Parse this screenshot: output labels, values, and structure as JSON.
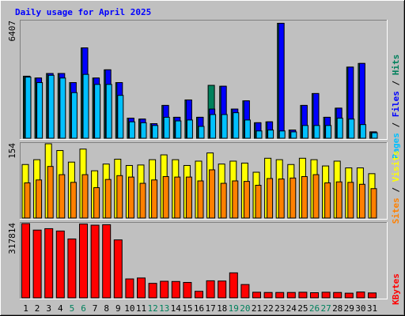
{
  "title": "Daily usage for April 2025",
  "colors": {
    "background": "#c0c0c0",
    "title": "#0000ff",
    "hits": "#00805c",
    "files": "#0000ff",
    "pages": "#00c0ff",
    "visits": "#ffff00",
    "sites": "#ff8000",
    "kbytes": "#ff0000",
    "weekend_label": "#00805c",
    "weekday_label": "#000000"
  },
  "panel_top": {
    "max_label": "6407",
    "legend": [
      {
        "key": "pages",
        "text": "Pages"
      },
      {
        "key": "sep",
        "text": " / "
      },
      {
        "key": "files",
        "text": "Files"
      },
      {
        "key": "sep",
        "text": " / "
      },
      {
        "key": "hits",
        "text": "Hits"
      }
    ]
  },
  "panel_mid": {
    "max_label": "154",
    "legend": [
      {
        "key": "sites",
        "text": "Sites"
      },
      {
        "key": "sep",
        "text": " / "
      },
      {
        "key": "visits",
        "text": "Visits"
      }
    ]
  },
  "panel_bot": {
    "max_label": "317814",
    "legend": [
      {
        "key": "kbytes",
        "text": "KBytes"
      }
    ]
  },
  "chart_data": [
    {
      "type": "bar",
      "title": "Daily usage for April 2025",
      "categories": [
        "1",
        "2",
        "3",
        "4",
        "5",
        "6",
        "7",
        "8",
        "9",
        "10",
        "11",
        "12",
        "13",
        "14",
        "15",
        "16",
        "17",
        "18",
        "19",
        "20",
        "21",
        "22",
        "23",
        "24",
        "25",
        "26",
        "27",
        "28",
        "29",
        "30",
        "31"
      ],
      "weekend_days": [
        "5",
        "6",
        "12",
        "13",
        "19",
        "20",
        "26",
        "27"
      ],
      "ylim": [
        0,
        6407
      ],
      "series": [
        {
          "name": "Hits",
          "values": [
            3400,
            3300,
            3550,
            3550,
            3050,
            4950,
            3300,
            3750,
            3050,
            1100,
            1050,
            800,
            1800,
            1150,
            2100,
            1150,
            2900,
            2850,
            1600,
            2050,
            850,
            900,
            6300,
            450,
            1800,
            2450,
            1150,
            1650,
            3900,
            4100,
            350
          ]
        },
        {
          "name": "Files",
          "values": [
            3400,
            3300,
            3550,
            3550,
            3050,
            4950,
            3300,
            3750,
            3050,
            1100,
            1050,
            800,
            1800,
            1150,
            2100,
            1150,
            1600,
            2850,
            1600,
            2050,
            850,
            900,
            6300,
            450,
            1800,
            2450,
            1150,
            1650,
            3900,
            4100,
            350
          ]
        },
        {
          "name": "Pages",
          "values": [
            3350,
            3050,
            3450,
            3300,
            2500,
            3500,
            2950,
            2950,
            2350,
            900,
            850,
            700,
            1150,
            950,
            1000,
            650,
            1300,
            1300,
            1400,
            1000,
            400,
            450,
            400,
            350,
            700,
            700,
            700,
            1100,
            1050,
            750,
            300
          ]
        }
      ]
    },
    {
      "type": "bar",
      "categories": [
        "1",
        "2",
        "3",
        "4",
        "5",
        "6",
        "7",
        "8",
        "9",
        "10",
        "11",
        "12",
        "13",
        "14",
        "15",
        "16",
        "17",
        "18",
        "19",
        "20",
        "21",
        "22",
        "23",
        "24",
        "25",
        "26",
        "27",
        "28",
        "29",
        "30",
        "31"
      ],
      "ylim": [
        0,
        154
      ],
      "series": [
        {
          "name": "Visits",
          "values": [
            111,
            121,
            154,
            140,
            116,
            143,
            98,
            112,
            122,
            109,
            110,
            121,
            131,
            121,
            109,
            118,
            135,
            112,
            118,
            114,
            95,
            124,
            121,
            111,
            124,
            121,
            108,
            118,
            104,
            104,
            92
          ]
        },
        {
          "name": "Sites",
          "values": [
            73,
            79,
            107,
            90,
            74,
            90,
            63,
            80,
            88,
            85,
            72,
            79,
            86,
            85,
            85,
            77,
            100,
            72,
            77,
            76,
            68,
            82,
            81,
            83,
            86,
            90,
            73,
            75,
            74,
            70,
            61
          ]
        }
      ]
    },
    {
      "type": "bar",
      "categories": [
        "1",
        "2",
        "3",
        "4",
        "5",
        "6",
        "7",
        "8",
        "9",
        "10",
        "11",
        "12",
        "13",
        "14",
        "15",
        "16",
        "17",
        "18",
        "19",
        "20",
        "21",
        "22",
        "23",
        "24",
        "25",
        "26",
        "27",
        "28",
        "29",
        "30",
        "31"
      ],
      "ylim": [
        0,
        317814
      ],
      "series": [
        {
          "name": "KBytes",
          "values": [
            317814,
            290000,
            296000,
            286000,
            252000,
            316000,
            311000,
            313000,
            248000,
            81000,
            85000,
            62000,
            71000,
            70000,
            66000,
            28000,
            73000,
            72000,
            107000,
            57000,
            24000,
            23000,
            23000,
            23000,
            24000,
            22000,
            24000,
            23000,
            20000,
            25000,
            21000
          ]
        }
      ]
    }
  ]
}
